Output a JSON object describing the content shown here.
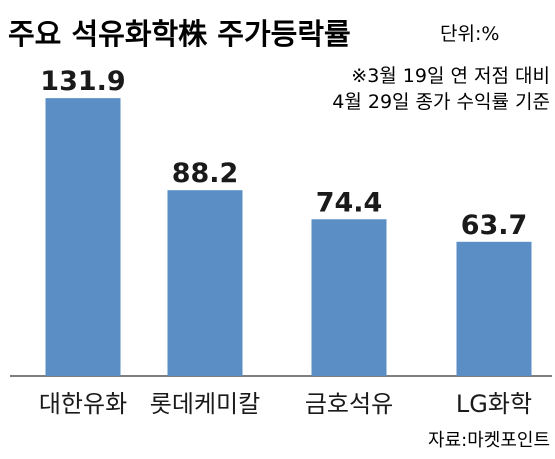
{
  "chart_data": {
    "type": "bar",
    "title": "주요 석유화학株 주가등락률",
    "unit_label": "단위:%",
    "note_lines": [
      "※3월 19일 연 저점 대비",
      "4월 29일 종가 수익률 기준"
    ],
    "source": "자료:마켓포인트",
    "categories": [
      "대한유화",
      "롯데케미칼",
      "금호석유",
      "LG화학"
    ],
    "values": [
      131.9,
      88.2,
      74.4,
      63.7
    ],
    "value_labels": [
      "131.9",
      "88.2",
      "74.4",
      "63.7"
    ],
    "ylim": [
      0,
      150
    ],
    "grid": false,
    "colors": {
      "bar": "#5b8ec4",
      "text": "#1a1a1a",
      "axis": "#555555"
    }
  }
}
